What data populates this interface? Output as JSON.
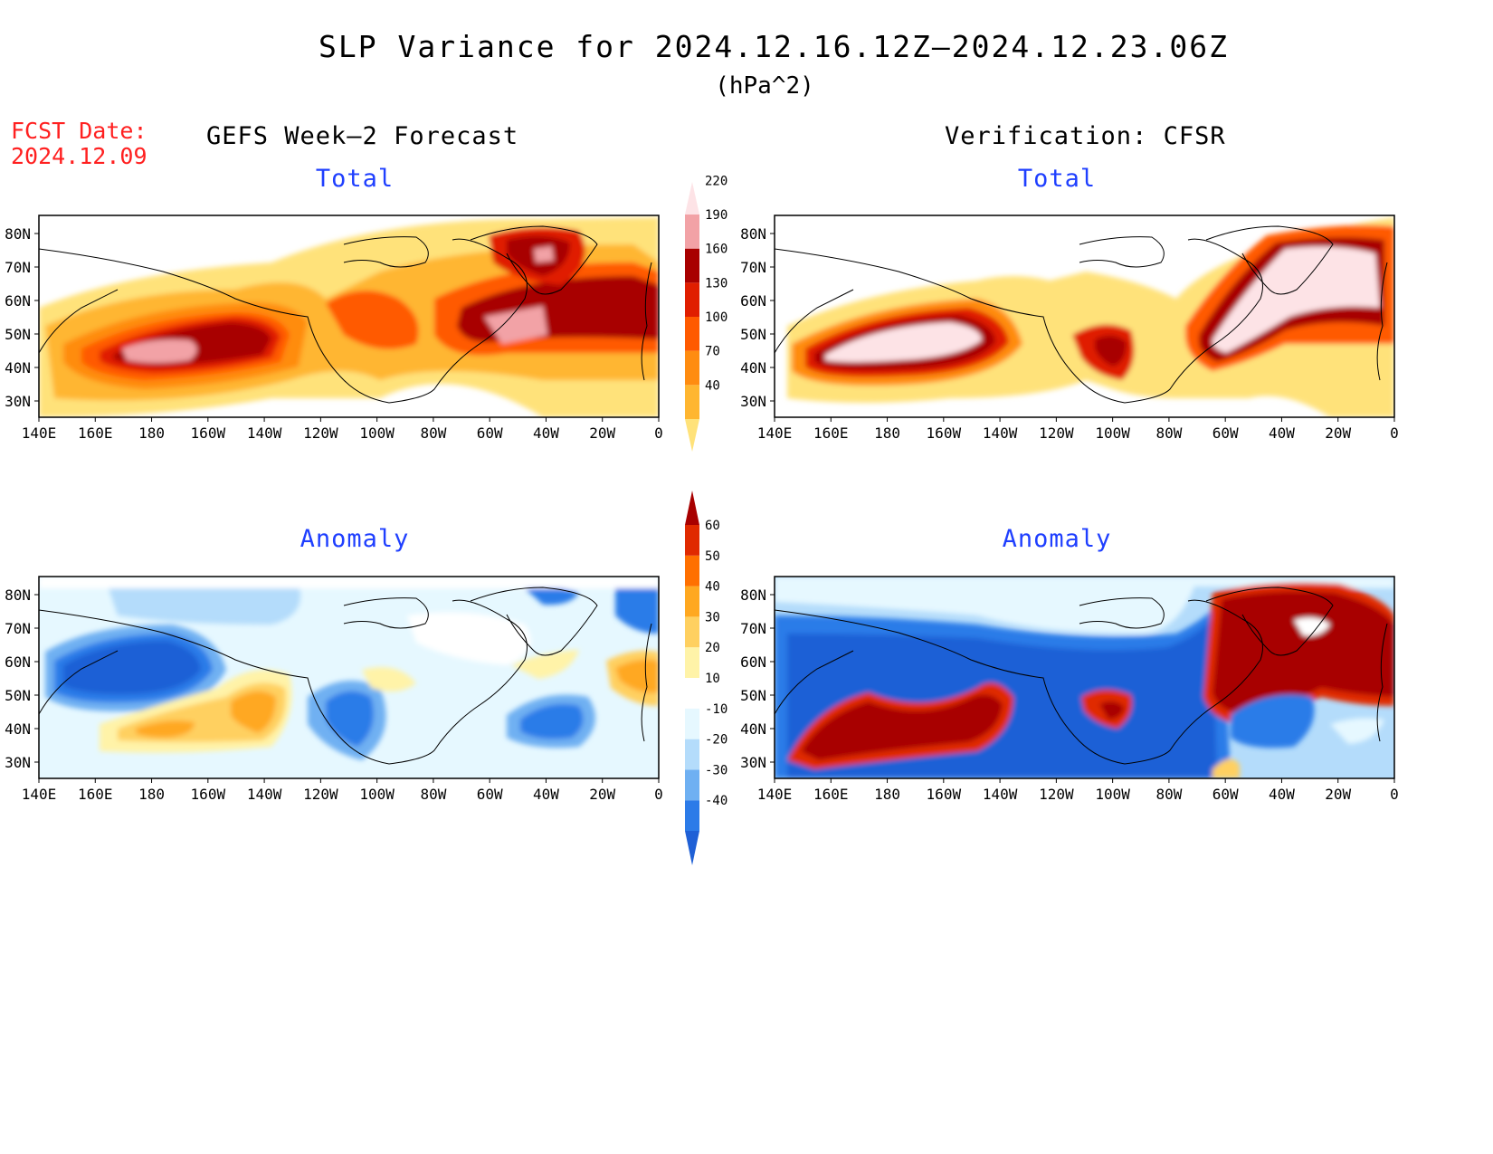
{
  "title": "SLP Variance for 2024.12.16.12Z–2024.12.23.06Z",
  "units": "(hPa^2)",
  "fcst_date": {
    "label": "FCST Date:",
    "value": "2024.12.09"
  },
  "columns": {
    "left": "GEFS Week–2 Forecast",
    "right": "Verification: CFSR"
  },
  "panels": {
    "total": "Total",
    "anomaly": "Anomaly"
  },
  "lat_labels": [
    "80N",
    "70N",
    "60N",
    "50N",
    "40N",
    "30N"
  ],
  "lon_labels": [
    "140E",
    "160E",
    "180",
    "160W",
    "140W",
    "120W",
    "100W",
    "80W",
    "60W",
    "40W",
    "20W",
    "0"
  ],
  "total_colorbar": {
    "levels": [
      "40",
      "70",
      "100",
      "130",
      "160",
      "190",
      "220"
    ],
    "colors": [
      "#ffe27a",
      "#ffb630",
      "#ff8c10",
      "#ff5a00",
      "#e01e00",
      "#a80000",
      "#f2a2a6",
      "#fde3e6"
    ]
  },
  "anomaly_colorbar": {
    "levels": [
      "-40",
      "-30",
      "-20",
      "-10",
      "10",
      "20",
      "30",
      "40",
      "50",
      "60"
    ],
    "colors": [
      "#1f60d6",
      "#2c7be8",
      "#6fb0f2",
      "#b4dcfb",
      "#e6f8ff",
      "#ffffff",
      "#fff3a8",
      "#ffd060",
      "#ffa820",
      "#ff7000",
      "#e02a00",
      "#a80000"
    ]
  }
}
